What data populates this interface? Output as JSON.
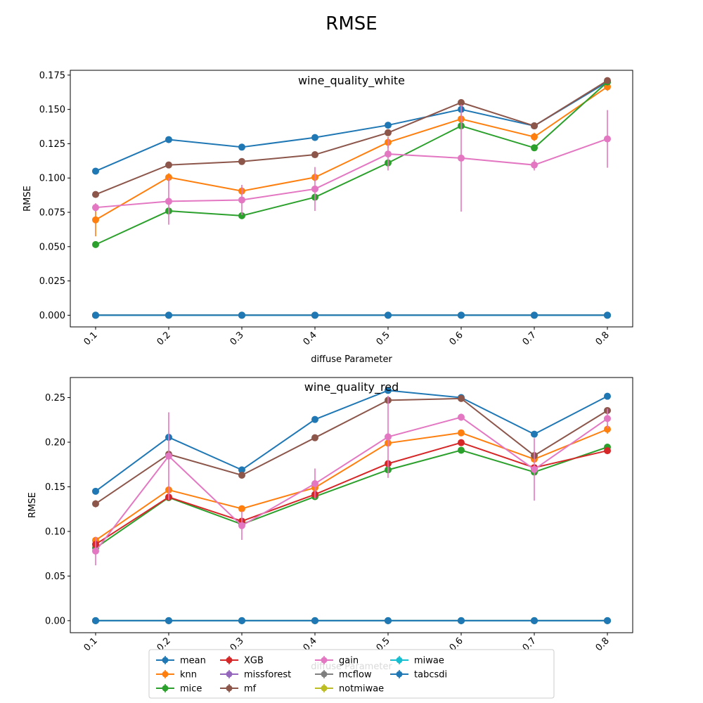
{
  "figure_title": "RMSE",
  "chart_data": [
    {
      "type": "line",
      "title": "wine_quality_white",
      "xlabel": "diffuse Parameter",
      "ylabel": "RMSE",
      "x": [
        "0.1",
        "0.2",
        "0.3",
        "0.4",
        "0.5",
        "0.6",
        "0.7",
        "0.8"
      ],
      "ylim": [
        -0.0085,
        0.1785
      ],
      "yticks": [
        "0.000",
        "0.025",
        "0.050",
        "0.075",
        "0.100",
        "0.125",
        "0.150",
        "0.175"
      ],
      "ytick_values": [
        0,
        0.025,
        0.05,
        0.075,
        0.1,
        0.125,
        0.15,
        0.175
      ],
      "series": [
        {
          "name": "mean",
          "color": "#1f77b4",
          "values": [
            0.105,
            0.128,
            0.1225,
            0.1295,
            0.1385,
            0.15,
            0.138,
            0.17
          ]
        },
        {
          "name": "knn",
          "color": "#ff7f0e",
          "values": [
            0.0695,
            0.1005,
            0.0905,
            0.1005,
            0.126,
            0.143,
            0.13,
            0.1665
          ],
          "err": [
            0.012,
            0.003,
            0.003,
            0.003,
            0.004,
            0.004,
            0.003,
            0.003
          ]
        },
        {
          "name": "mice",
          "color": "#2ca02c",
          "values": [
            0.0515,
            0.076,
            0.0725,
            0.086,
            0.111,
            0.138,
            0.122,
            0.17
          ],
          "err": [
            0.001,
            0.001,
            0.001,
            0.001,
            0.001,
            0.001,
            0.002,
            0.002
          ]
        },
        {
          "name": "XGB",
          "color": "#d62728",
          "values": [
            0,
            0,
            0,
            0,
            0,
            0,
            0,
            0
          ]
        },
        {
          "name": "missforest",
          "color": "#9467bd",
          "values": [
            0,
            0,
            0,
            0,
            0,
            0,
            0,
            0
          ]
        },
        {
          "name": "mf",
          "color": "#8c564b",
          "values": [
            0.088,
            0.1095,
            0.112,
            0.117,
            0.133,
            0.155,
            0.138,
            0.171
          ]
        },
        {
          "name": "gain",
          "color": "#e377c2",
          "values": [
            0.0785,
            0.083,
            0.084,
            0.092,
            0.1175,
            0.1145,
            0.1095,
            0.1285
          ],
          "err": [
            0.003,
            0.017,
            0.011,
            0.016,
            0.012,
            0.039,
            0.004,
            0.021
          ]
        },
        {
          "name": "mcflow",
          "color": "#7f7f7f",
          "values": [
            0,
            0,
            0,
            0,
            0,
            0,
            0,
            0
          ]
        },
        {
          "name": "notmiwae",
          "color": "#bcbd22",
          "values": [
            0,
            0,
            0,
            0,
            0,
            0,
            0,
            0
          ]
        },
        {
          "name": "miwae",
          "color": "#17becf",
          "values": [
            0,
            0,
            0,
            0,
            0,
            0,
            0,
            0
          ]
        },
        {
          "name": "tabcsdi",
          "color": "#1f77b4",
          "values": [
            0,
            0,
            0,
            0,
            0,
            0,
            0,
            0
          ]
        }
      ]
    },
    {
      "type": "line",
      "title": "wine_quality_red",
      "xlabel": "diffuse Parameter",
      "ylabel": "RMSE",
      "x": [
        "0.1",
        "0.2",
        "0.3",
        "0.4",
        "0.5",
        "0.6",
        "0.7",
        "0.8"
      ],
      "ylim": [
        -0.0135,
        0.2725
      ],
      "yticks": [
        "0.00",
        "0.05",
        "0.10",
        "0.15",
        "0.20",
        "0.25"
      ],
      "ytick_values": [
        0,
        0.05,
        0.1,
        0.15,
        0.2,
        0.25
      ],
      "series": [
        {
          "name": "mean",
          "color": "#1f77b4",
          "values": [
            0.145,
            0.2055,
            0.169,
            0.2255,
            0.258,
            0.25,
            0.209,
            0.2515
          ]
        },
        {
          "name": "knn",
          "color": "#ff7f0e",
          "values": [
            0.09,
            0.1465,
            0.1255,
            0.149,
            0.199,
            0.2105,
            0.181,
            0.2145
          ],
          "err": [
            0.002,
            0.003,
            0.002,
            0.003,
            0.003,
            0.003,
            0.004,
            0.005
          ]
        },
        {
          "name": "mice",
          "color": "#2ca02c",
          "values": [
            0.0815,
            0.138,
            0.108,
            0.139,
            0.169,
            0.191,
            0.1665,
            0.1945
          ],
          "err": [
            0.002,
            0.002,
            0.002,
            0.002,
            0.002,
            0.002,
            0.003,
            0.002
          ]
        },
        {
          "name": "XGB",
          "color": "#d62728",
          "values": [
            0.0855,
            0.1385,
            0.1115,
            0.1415,
            0.176,
            0.1995,
            0.1715,
            0.1905
          ],
          "err": [
            0.002,
            0.002,
            0.002,
            0.002,
            0.002,
            0.002,
            0.002,
            0.002
          ]
        },
        {
          "name": "missforest",
          "color": "#9467bd",
          "values": [
            0,
            0,
            0,
            0,
            0,
            0,
            0,
            0
          ]
        },
        {
          "name": "mf",
          "color": "#8c564b",
          "values": [
            0.131,
            0.1865,
            0.163,
            0.205,
            0.247,
            0.249,
            0.185,
            0.2355
          ],
          "err": [
            0.004,
            0.002,
            0.002,
            0.002,
            0.002,
            0.002,
            0.002,
            0.003
          ]
        },
        {
          "name": "gain",
          "color": "#e377c2",
          "values": [
            0.078,
            0.1845,
            0.1065,
            0.1535,
            0.206,
            0.228,
            0.1695,
            0.2265
          ],
          "err": [
            0.016,
            0.049,
            0.016,
            0.017,
            0.046,
            0.004,
            0.035,
            0.011
          ]
        },
        {
          "name": "mcflow",
          "color": "#7f7f7f",
          "values": [
            0,
            0,
            0,
            0,
            0,
            0,
            0,
            0
          ]
        },
        {
          "name": "notmiwae",
          "color": "#bcbd22",
          "values": [
            0,
            0,
            0,
            0,
            0,
            0,
            0,
            0
          ]
        },
        {
          "name": "miwae",
          "color": "#17becf",
          "values": [
            0,
            0,
            0,
            0,
            0,
            0,
            0,
            0
          ]
        },
        {
          "name": "tabcsdi",
          "color": "#1f77b4",
          "values": [
            0,
            0,
            0,
            0,
            0,
            0,
            0,
            0
          ]
        }
      ]
    }
  ],
  "legend": {
    "placement": "bottom-center",
    "entries": [
      {
        "name": "mean",
        "color": "#1f77b4"
      },
      {
        "name": "knn",
        "color": "#ff7f0e"
      },
      {
        "name": "mice",
        "color": "#2ca02c"
      },
      {
        "name": "XGB",
        "color": "#d62728"
      },
      {
        "name": "missforest",
        "color": "#9467bd"
      },
      {
        "name": "mf",
        "color": "#8c564b"
      },
      {
        "name": "gain",
        "color": "#e377c2"
      },
      {
        "name": "mcflow",
        "color": "#7f7f7f"
      },
      {
        "name": "notmiwae",
        "color": "#bcbd22"
      },
      {
        "name": "miwae",
        "color": "#17becf"
      },
      {
        "name": "tabcsdi",
        "color": "#1f77b4"
      }
    ]
  }
}
